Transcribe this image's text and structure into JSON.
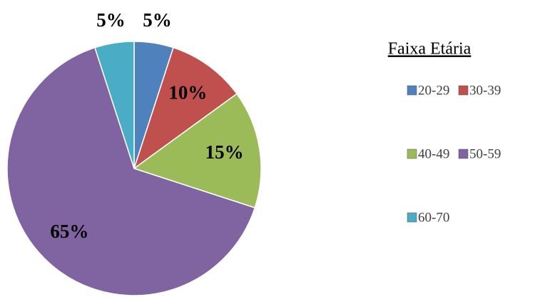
{
  "chart_data": {
    "type": "pie",
    "legend_title": "Faixa Etária",
    "categories": [
      "20-29",
      "30-39",
      "40-49",
      "50-59",
      "60-70"
    ],
    "values": [
      5,
      10,
      15,
      65,
      5
    ],
    "value_labels": [
      "5%",
      "10%",
      "15%",
      "65%",
      "5%"
    ],
    "colors": [
      "#4f81bd",
      "#c0504d",
      "#9bbb59",
      "#8064a2",
      "#4bacc6"
    ],
    "legend": "right"
  }
}
